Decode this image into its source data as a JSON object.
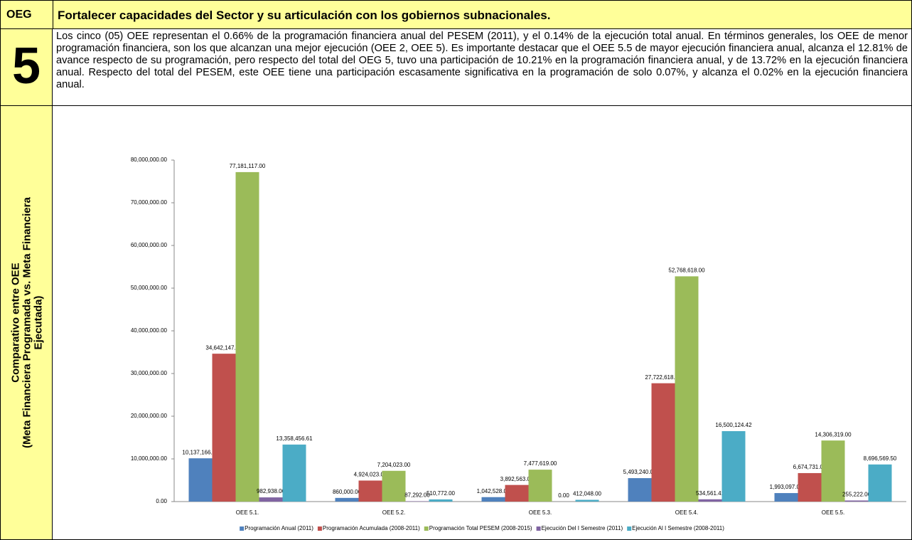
{
  "header": {
    "label": "OEG",
    "title": "Fortalecer capacidades del Sector y su articulación con los gobiernos subnacionales."
  },
  "section": {
    "number": "5",
    "text": "Los cinco (05) OEE representan el 0.66% de la programación financiera anual del PESEM (2011), y el 0.14% de la ejecución total anual. En términos generales, los OEE de menor programación financiera, son los que alcanzan una mejor ejecución (OEE 2, OEE 5). Es importante destacar que el OEE 5.5 de mayor ejecución financiera anual, alcanza el 12.81% de avance respecto de su programación, pero respecto del total del OEG 5, tuvo una participación de 10.21% en la programación financiera anual, y de 13.72% en la ejecución financiera anual. Respecto del total del PESEM, este OEE tiene una participación escasamente significativa en la programación de solo 0.07%, y alcanza el 0.02% en la ejecución financiera anual."
  },
  "side_label": {
    "lines": [
      "Comparativo entre OEE",
      "(Meta Financiera Programada vs. Meta Financiera",
      "Ejecutada)"
    ]
  },
  "chart_data": {
    "type": "bar",
    "categories": [
      "OEE 5.1.",
      "OEE 5.2.",
      "OEE 5.3.",
      "OEE 5.4.",
      "OEE 5.5."
    ],
    "series": [
      {
        "name": "Programación Anual (2011)",
        "color": "#4f81bd",
        "values": [
          10137166,
          860000,
          1042528,
          5493240,
          1993097
        ],
        "value_labels": [
          "10,137,166.00",
          "860,000.00",
          "1,042,528.00",
          "5,493,240.00",
          "1,993,097.00"
        ]
      },
      {
        "name": "Programación Acumulada (2008-2011)",
        "color": "#c0504d",
        "values": [
          34642147,
          4924023,
          3892563,
          27722618,
          6674731
        ],
        "value_labels": [
          "34,642,147.00",
          "4,924,023.00",
          "3,892,563.00",
          "27,722,618.00",
          "6,674,731.00"
        ]
      },
      {
        "name": "Programación Total PESEM (2008-2015)",
        "color": "#9bbb59",
        "values": [
          77181117,
          7204023,
          7477619,
          52768618,
          14306319
        ],
        "value_labels": [
          "77,181,117.00",
          "7,204,023.00",
          "7,477,619.00",
          "52,768,618.00",
          "14,306,319.00"
        ]
      },
      {
        "name": "Ejecución Del I Semestre (2011)",
        "color": "#8064a2",
        "values": [
          982938,
          87292,
          0,
          534561.41,
          255222
        ],
        "value_labels": [
          "982,938.00",
          "87,292.00",
          "0.00",
          "534,561.41",
          "255,222.00"
        ]
      },
      {
        "name": "Ejecución Al I Semestre (2008-2011)",
        "color": "#4bacc6",
        "values": [
          13358456.61,
          510772,
          412048,
          16500124.42,
          8696569.5
        ],
        "value_labels": [
          "13,358,456.61",
          "510,772.00",
          "412,048.00",
          "16,500,124.42",
          "8,696,569.50"
        ]
      }
    ],
    "ylim": [
      0,
      80000000
    ],
    "yticks": [
      {
        "value": 0,
        "label": "0.00"
      },
      {
        "value": 10000000,
        "label": "10,000,000.00"
      },
      {
        "value": 20000000,
        "label": "20,000,000.00"
      },
      {
        "value": 30000000,
        "label": "30,000,000.00"
      },
      {
        "value": 40000000,
        "label": "40,000,000.00"
      },
      {
        "value": 50000000,
        "label": "50,000,000.00"
      },
      {
        "value": 60000000,
        "label": "60,000,000.00"
      },
      {
        "value": 70000000,
        "label": "70,000,000.00"
      },
      {
        "value": 80000000,
        "label": "80,000,000.00"
      }
    ],
    "grid": false,
    "legend": "bottom"
  }
}
